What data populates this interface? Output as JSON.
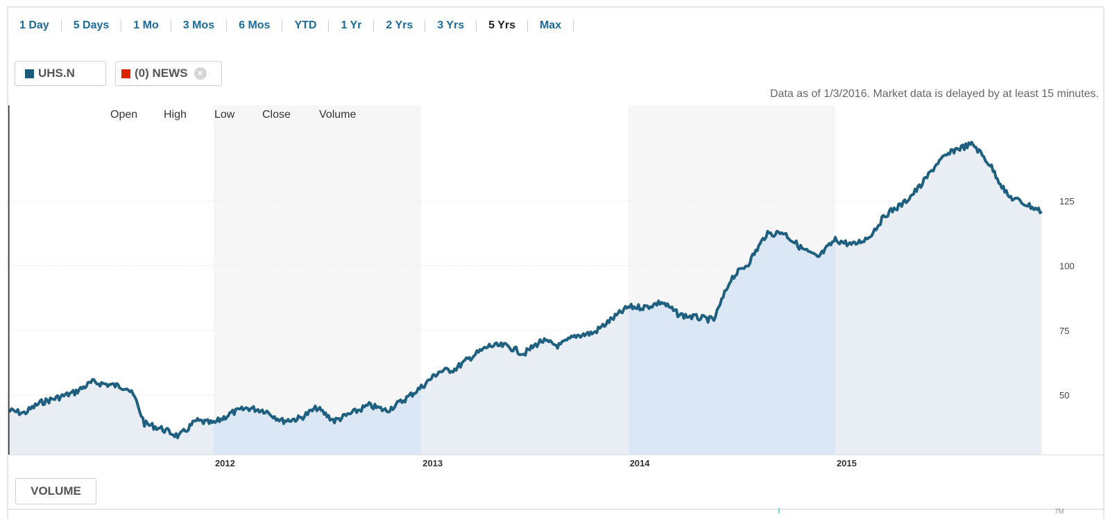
{
  "ranges": [
    "1 Day",
    "5 Days",
    "1 Mo",
    "3 Mos",
    "6 Mos",
    "YTD",
    "1 Yr",
    "2 Yrs",
    "3 Yrs",
    "5 Yrs",
    "Max"
  ],
  "active_range": "5 Yrs",
  "legend": {
    "ticker": "UHS.N",
    "ticker_color": "#1a5a7a",
    "news": "(0) NEWS",
    "news_color": "#dd2200",
    "close_icon": "close-icon"
  },
  "delay_note": "Data as of 1/3/2016. Market data is delayed by at least 15 minutes.",
  "volume_button": "VOLUME",
  "bottom_tick": "7M",
  "colors": {
    "line": "#1f5f7f",
    "fill": "#e9eef5",
    "fill_alt": "#dce7f6",
    "band_alt": "#f6f6f6",
    "link": "#1a6a99"
  },
  "chart_data": {
    "type": "area",
    "title": "",
    "xlabel": "",
    "ylabel": "",
    "columns": [
      "Open",
      "High",
      "Low",
      "Close",
      "Volume"
    ],
    "x_ticks": [
      "2012",
      "2013",
      "2014",
      "2015"
    ],
    "y_ticks": [
      50,
      75,
      100,
      125
    ],
    "y_tick_side": "right",
    "xlim": [
      "2011-01-04",
      "2016-01-03"
    ],
    "ylim": [
      27,
      162
    ],
    "grid": "horizontal",
    "series": [
      {
        "x": [
          "2011-01-04",
          "2011-02-01",
          "2011-03-01",
          "2011-04-01",
          "2011-05-01",
          "2011-06-01",
          "2011-07-01",
          "2011-08-01",
          "2011-08-15",
          "2011-09-01",
          "2011-10-01",
          "2011-11-01",
          "2011-12-01",
          "2012-01-01",
          "2012-02-01",
          "2012-03-01",
          "2012-04-01",
          "2012-05-01",
          "2012-06-01",
          "2012-07-01",
          "2012-08-01",
          "2012-09-01",
          "2012-10-01",
          "2012-11-01",
          "2012-12-01",
          "2013-01-01",
          "2013-02-01",
          "2013-03-01",
          "2013-04-01",
          "2013-05-01",
          "2013-06-01",
          "2013-07-01",
          "2013-08-01",
          "2013-09-01",
          "2013-10-01",
          "2013-11-01",
          "2013-12-01",
          "2014-01-01",
          "2014-02-01",
          "2014-03-01",
          "2014-04-01",
          "2014-05-01",
          "2014-06-01",
          "2014-07-01",
          "2014-08-01",
          "2014-09-01",
          "2014-10-01",
          "2014-11-01",
          "2014-12-01",
          "2015-01-01",
          "2015-02-01",
          "2015-03-01",
          "2015-04-01",
          "2015-05-01",
          "2015-06-01",
          "2015-07-01",
          "2015-08-01",
          "2015-09-01",
          "2015-10-01",
          "2015-11-01",
          "2015-12-01",
          "2015-12-31"
        ],
        "y": [
          44,
          43,
          47,
          49,
          51,
          55,
          54,
          53,
          49,
          39,
          37,
          34,
          40,
          39,
          43,
          45,
          44,
          40,
          41,
          45,
          40,
          43,
          46,
          44,
          48,
          53,
          59,
          60,
          65,
          69,
          69,
          66,
          71,
          69,
          73,
          74,
          79,
          84,
          84,
          86,
          81,
          80,
          79,
          95,
          101,
          112,
          113,
          107,
          103,
          110,
          108,
          111,
          120,
          124,
          131,
          140,
          145,
          147,
          139,
          127,
          124,
          121
        ]
      }
    ]
  }
}
